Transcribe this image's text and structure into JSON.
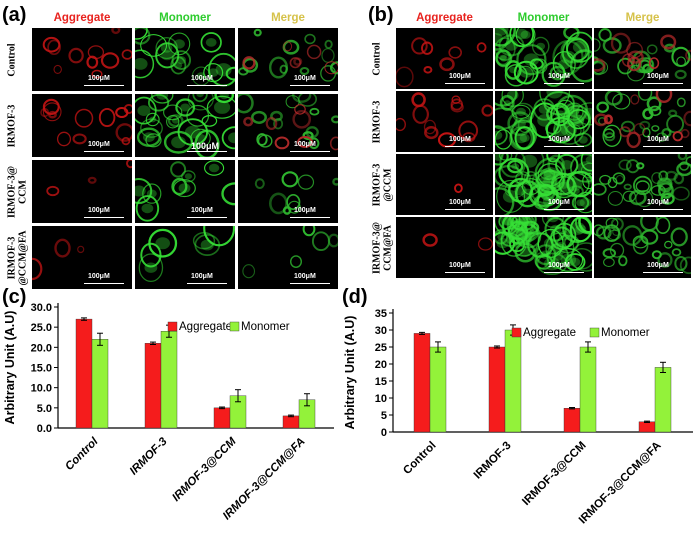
{
  "figure": {
    "panel_labels": [
      "(a)",
      "(b)",
      "(c)",
      "(d)"
    ],
    "micrographs": {
      "column_titles": [
        "Aggregate",
        "Monomer",
        "Merge"
      ],
      "column_colors": [
        "#e8231f",
        "#2ecc2e",
        "#d6c24a"
      ],
      "panel_a_rows": [
        "Control",
        "IRMOF-3",
        "IRMOF-3@\nCCM",
        "IRMOF-3\n@CCM@FA"
      ],
      "panel_b_rows": [
        "Control",
        "IRMOF-3",
        "IRMOF-3\n@CCM",
        "IRMOF-3@\nCCM@FA"
      ],
      "scale_label": "100μM",
      "scale_label_large": "100μM"
    }
  },
  "chart_data": [
    {
      "type": "bar",
      "panel": "(c)",
      "categories": [
        "Control",
        "IRMOF-3",
        "IRMOF-3@CCM",
        "IRMOF-3@CCM@FA"
      ],
      "series": [
        {
          "name": "Aggregate",
          "color": "#f51c1c",
          "values": [
            27,
            21,
            5,
            3
          ],
          "errors": [
            0.3,
            0.3,
            0.2,
            0.2
          ]
        },
        {
          "name": "Monomer",
          "color": "#93f23a",
          "values": [
            22,
            24,
            8,
            7
          ],
          "errors": [
            1.5,
            1.5,
            1.5,
            1.5
          ]
        }
      ],
      "ylabel": "Arbitrary Unit (A.U)",
      "ylim": [
        0,
        30
      ],
      "yticks": [
        "0.0",
        "5.0",
        "10.0",
        "15.0",
        "20.0",
        "25.0",
        "30.0"
      ],
      "legend": "top-right",
      "italic_tick_labels": true
    },
    {
      "type": "bar",
      "panel": "(d)",
      "categories": [
        "Control",
        "IRMOF-3",
        "IRMOF-3@CCM",
        "IRMOF-3@CCM@FA"
      ],
      "series": [
        {
          "name": "Aggregate",
          "color": "#f51c1c",
          "values": [
            29,
            25,
            7,
            3
          ],
          "errors": [
            0.3,
            0.3,
            0.2,
            0.2
          ]
        },
        {
          "name": "Monomer",
          "color": "#93f23a",
          "values": [
            25,
            30,
            25,
            19
          ],
          "errors": [
            1.5,
            1.5,
            1.5,
            1.5
          ]
        }
      ],
      "ylabel": "Arbitrary Unit (A.U)",
      "ylim": [
        0,
        35
      ],
      "yticks": [
        "0",
        "5",
        "10",
        "15",
        "20",
        "25",
        "30",
        "35"
      ],
      "legend": "top-right",
      "italic_tick_labels": false
    }
  ]
}
